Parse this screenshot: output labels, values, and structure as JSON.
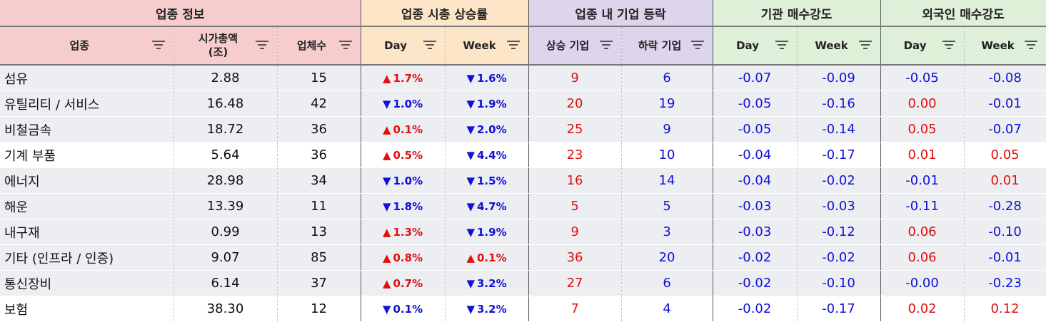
{
  "groups": [
    {
      "label": "업종 정보",
      "span": 3,
      "cls": "g-info"
    },
    {
      "label": "업종 시총 상승률",
      "span": 2,
      "cls": "g-cap"
    },
    {
      "label": "업종 내 기업 등락",
      "span": 2,
      "cls": "g-adv"
    },
    {
      "label": "기관 매수강도",
      "span": 2,
      "cls": "g-inst"
    },
    {
      "label": "외국인 매수강도",
      "span": 2,
      "cls": "g-frgn"
    }
  ],
  "columns": [
    {
      "label": "업종",
      "key": "name",
      "cls": "g-info"
    },
    {
      "label": "시가총액\n(조)",
      "key": "cap",
      "cls": "g-info"
    },
    {
      "label": "업체수",
      "key": "count",
      "cls": "g-info"
    },
    {
      "label": "Day",
      "key": "cap_day",
      "cls": "g-cap"
    },
    {
      "label": "Week",
      "key": "cap_week",
      "cls": "g-cap"
    },
    {
      "label": "상승 기업",
      "key": "rise",
      "cls": "g-adv"
    },
    {
      "label": "하락 기업",
      "key": "fall",
      "cls": "g-adv"
    },
    {
      "label": "Day",
      "key": "inst_day",
      "cls": "g-inst"
    },
    {
      "label": "Week",
      "key": "inst_week",
      "cls": "g-inst"
    },
    {
      "label": "Day",
      "key": "frgn_day",
      "cls": "g-frgn"
    },
    {
      "label": "Week",
      "key": "frgn_week",
      "cls": "g-frgn"
    }
  ],
  "rows": [
    {
      "name": "섬유",
      "cap": "2.88",
      "count": "15",
      "cap_day": {
        "dir": "up",
        "text": "1.7%"
      },
      "cap_week": {
        "dir": "down",
        "text": "1.6%"
      },
      "rise": "9",
      "fall": "6",
      "inst_day": "-0.07",
      "inst_week": "-0.09",
      "frgn_day": "-0.05",
      "frgn_week": "-0.08"
    },
    {
      "name": "유틸리티 / 서비스",
      "cap": "16.48",
      "count": "42",
      "cap_day": {
        "dir": "down",
        "text": "1.0%"
      },
      "cap_week": {
        "dir": "down",
        "text": "1.9%"
      },
      "rise": "20",
      "fall": "19",
      "inst_day": "-0.05",
      "inst_week": "-0.16",
      "frgn_day": "0.00",
      "frgn_week": "-0.01"
    },
    {
      "name": "비철금속",
      "cap": "18.72",
      "count": "36",
      "cap_day": {
        "dir": "up",
        "text": "0.1%"
      },
      "cap_week": {
        "dir": "down",
        "text": "2.0%"
      },
      "rise": "25",
      "fall": "9",
      "inst_day": "-0.05",
      "inst_week": "-0.14",
      "frgn_day": "0.05",
      "frgn_week": "-0.07"
    },
    {
      "name": "기계 부품",
      "cap": "5.64",
      "count": "36",
      "cap_day": {
        "dir": "up",
        "text": "0.5%"
      },
      "cap_week": {
        "dir": "down",
        "text": "4.4%"
      },
      "rise": "23",
      "fall": "10",
      "inst_day": "-0.04",
      "inst_week": "-0.17",
      "frgn_day": "0.01",
      "frgn_week": "0.05"
    },
    {
      "name": "에너지",
      "cap": "28.98",
      "count": "34",
      "cap_day": {
        "dir": "down",
        "text": "1.0%"
      },
      "cap_week": {
        "dir": "down",
        "text": "1.5%"
      },
      "rise": "16",
      "fall": "14",
      "inst_day": "-0.04",
      "inst_week": "-0.02",
      "frgn_day": "-0.01",
      "frgn_week": "0.01"
    },
    {
      "name": "해운",
      "cap": "13.39",
      "count": "11",
      "cap_day": {
        "dir": "down",
        "text": "1.8%"
      },
      "cap_week": {
        "dir": "down",
        "text": "4.7%"
      },
      "rise": "5",
      "fall": "5",
      "inst_day": "-0.03",
      "inst_week": "-0.03",
      "frgn_day": "-0.11",
      "frgn_week": "-0.28"
    },
    {
      "name": "내구재",
      "cap": "0.99",
      "count": "13",
      "cap_day": {
        "dir": "up",
        "text": "1.3%"
      },
      "cap_week": {
        "dir": "down",
        "text": "1.9%"
      },
      "rise": "9",
      "fall": "3",
      "inst_day": "-0.03",
      "inst_week": "-0.12",
      "frgn_day": "0.06",
      "frgn_week": "-0.10"
    },
    {
      "name": "기타 (인프라 / 인증)",
      "cap": "9.07",
      "count": "85",
      "cap_day": {
        "dir": "up",
        "text": "0.8%"
      },
      "cap_week": {
        "dir": "up",
        "text": "0.1%"
      },
      "rise": "36",
      "fall": "20",
      "inst_day": "-0.02",
      "inst_week": "-0.02",
      "frgn_day": "0.06",
      "frgn_week": "-0.01"
    },
    {
      "name": "통신장비",
      "cap": "6.14",
      "count": "37",
      "cap_day": {
        "dir": "up",
        "text": "0.7%"
      },
      "cap_week": {
        "dir": "down",
        "text": "3.2%"
      },
      "rise": "27",
      "fall": "6",
      "inst_day": "-0.02",
      "inst_week": "-0.10",
      "frgn_day": "-0.00",
      "frgn_week": "-0.23"
    },
    {
      "name": "보험",
      "cap": "38.30",
      "count": "12",
      "cap_day": {
        "dir": "down",
        "text": "0.1%"
      },
      "cap_week": {
        "dir": "down",
        "text": "3.2%"
      },
      "rise": "7",
      "fall": "4",
      "inst_day": "-0.02",
      "inst_week": "-0.17",
      "frgn_day": "0.02",
      "frgn_week": "0.12"
    }
  ],
  "row_shading": [
    "alt",
    "alt",
    "alt",
    "plain",
    "alt",
    "alt",
    "alt",
    "alt",
    "alt",
    "plain"
  ],
  "colors": {
    "up": "#e01010",
    "down": "#1010d8"
  },
  "icons": {
    "sort_filter": "filter-icon",
    "up_arrow": "triangle-up-icon",
    "down_arrow": "triangle-down-icon"
  }
}
